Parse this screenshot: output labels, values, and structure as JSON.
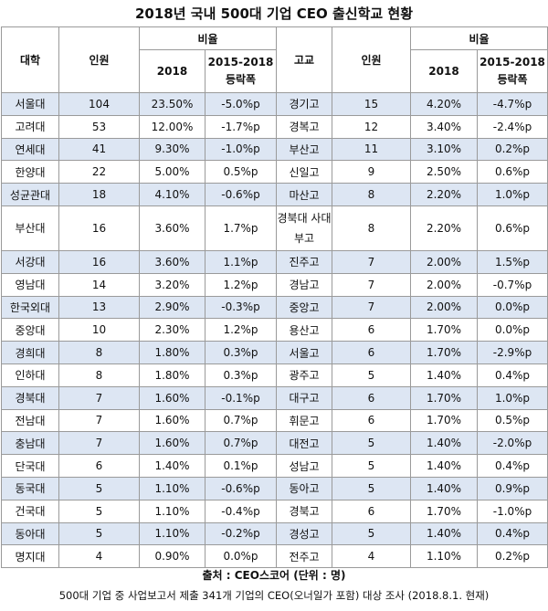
{
  "title": "2018년 국내 500대 기업 CEO 출신학교 현황",
  "headers": {
    "univ": "대학",
    "count": "인원",
    "ratio": "비율",
    "year": "2018",
    "change_line1": "2015-2018",
    "change_line2": "등락폭",
    "hs": "고교"
  },
  "rows": [
    {
      "u": "서울대",
      "uc": "104",
      "ur": "23.50%",
      "ud": "-5.0%p",
      "h": "경기고",
      "hc": "15",
      "hr": "4.20%",
      "hd": "-4.7%p"
    },
    {
      "u": "고려대",
      "uc": "53",
      "ur": "12.00%",
      "ud": "-1.7%p",
      "h": "경복고",
      "hc": "12",
      "hr": "3.40%",
      "hd": "-2.4%p"
    },
    {
      "u": "연세대",
      "uc": "41",
      "ur": "9.30%",
      "ud": "-1.0%p",
      "h": "부산고",
      "hc": "11",
      "hr": "3.10%",
      "hd": "0.2%p"
    },
    {
      "u": "한양대",
      "uc": "22",
      "ur": "5.00%",
      "ud": "0.5%p",
      "h": "신일고",
      "hc": "9",
      "hr": "2.50%",
      "hd": "0.6%p"
    },
    {
      "u": "성균관대",
      "uc": "18",
      "ur": "4.10%",
      "ud": "-0.6%p",
      "h": "마산고",
      "hc": "8",
      "hr": "2.20%",
      "hd": "1.0%p"
    },
    {
      "u": "부산대",
      "uc": "16",
      "ur": "3.60%",
      "ud": "1.7%p",
      "h": "경북대 사대부고",
      "hc": "8",
      "hr": "2.20%",
      "hd": "0.6%p"
    },
    {
      "u": "서강대",
      "uc": "16",
      "ur": "3.60%",
      "ud": "1.1%p",
      "h": "진주고",
      "hc": "7",
      "hr": "2.00%",
      "hd": "1.5%p"
    },
    {
      "u": "영남대",
      "uc": "14",
      "ur": "3.20%",
      "ud": "1.2%p",
      "h": "경남고",
      "hc": "7",
      "hr": "2.00%",
      "hd": "-0.7%p"
    },
    {
      "u": "한국외대",
      "uc": "13",
      "ur": "2.90%",
      "ud": "-0.3%p",
      "h": "중앙고",
      "hc": "7",
      "hr": "2.00%",
      "hd": "0.0%p"
    },
    {
      "u": "중앙대",
      "uc": "10",
      "ur": "2.30%",
      "ud": "1.2%p",
      "h": "용산고",
      "hc": "6",
      "hr": "1.70%",
      "hd": "0.0%p"
    },
    {
      "u": "경희대",
      "uc": "8",
      "ur": "1.80%",
      "ud": "0.3%p",
      "h": "서울고",
      "hc": "6",
      "hr": "1.70%",
      "hd": "-2.9%p"
    },
    {
      "u": "인하대",
      "uc": "8",
      "ur": "1.80%",
      "ud": "0.3%p",
      "h": "광주고",
      "hc": "5",
      "hr": "1.40%",
      "hd": "0.4%p"
    },
    {
      "u": "경북대",
      "uc": "7",
      "ur": "1.60%",
      "ud": "-0.1%p",
      "h": "대구고",
      "hc": "6",
      "hr": "1.70%",
      "hd": "1.0%p"
    },
    {
      "u": "전남대",
      "uc": "7",
      "ur": "1.60%",
      "ud": "0.7%p",
      "h": "휘문고",
      "hc": "6",
      "hr": "1.70%",
      "hd": "0.5%p"
    },
    {
      "u": "충남대",
      "uc": "7",
      "ur": "1.60%",
      "ud": "0.7%p",
      "h": "대전고",
      "hc": "5",
      "hr": "1.40%",
      "hd": "-2.0%p"
    },
    {
      "u": "단국대",
      "uc": "6",
      "ur": "1.40%",
      "ud": "0.1%p",
      "h": "성남고",
      "hc": "5",
      "hr": "1.40%",
      "hd": "0.4%p"
    },
    {
      "u": "동국대",
      "uc": "5",
      "ur": "1.10%",
      "ud": "-0.6%p",
      "h": "동아고",
      "hc": "5",
      "hr": "1.40%",
      "hd": "0.9%p"
    },
    {
      "u": "건국대",
      "uc": "5",
      "ur": "1.10%",
      "ud": "-0.4%p",
      "h": "경북고",
      "hc": "6",
      "hr": "1.70%",
      "hd": "-1.0%p"
    },
    {
      "u": "동아대",
      "uc": "5",
      "ur": "1.10%",
      "ud": "-0.2%p",
      "h": "경성고",
      "hc": "5",
      "hr": "1.40%",
      "hd": "0.4%p"
    },
    {
      "u": "명지대",
      "uc": "4",
      "ur": "0.90%",
      "ud": "0.0%p",
      "h": "전주고",
      "hc": "4",
      "hr": "1.10%",
      "hd": "0.2%p"
    }
  ],
  "source": "출처 : CEO스코어 (단위 : 명)",
  "note": "500대 기업 중 사업보고서 제출 341개 기업의 CEO(오너일가 포함) 대상 조사 (2018.8.1. 현재)",
  "colors": {
    "stripe": "#dde6f3",
    "border": "#9a9a9a"
  }
}
